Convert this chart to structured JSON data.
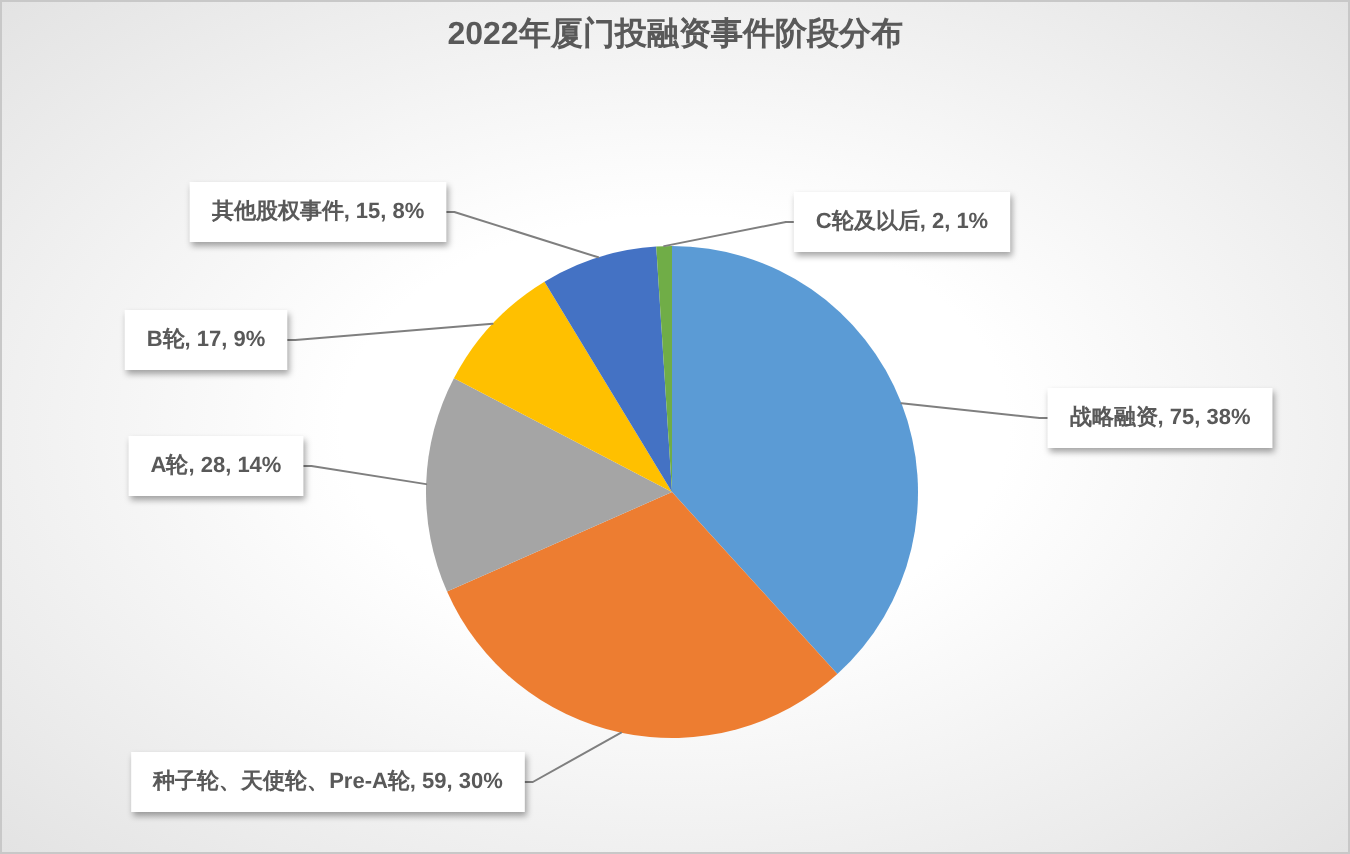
{
  "chart_data": {
    "type": "pie",
    "title": "2022年厦门投融资事件阶段分布",
    "categories": [
      "战略融资",
      "种子轮、天使轮、Pre-A轮",
      "A轮",
      "B轮",
      "其他股权事件",
      "C轮及以后"
    ],
    "values": [
      75,
      59,
      28,
      17,
      15,
      2
    ],
    "colors": [
      "#5b9bd5",
      "#ed7d31",
      "#a5a5a5",
      "#ffc000",
      "#4472c4",
      "#70ad47"
    ],
    "value_labels": [
      ", 75, 38%",
      ", 59, 30%",
      ", 28, 14%",
      ", 17, 9%",
      ", 15, 8%",
      ", 2, 1%"
    ]
  }
}
